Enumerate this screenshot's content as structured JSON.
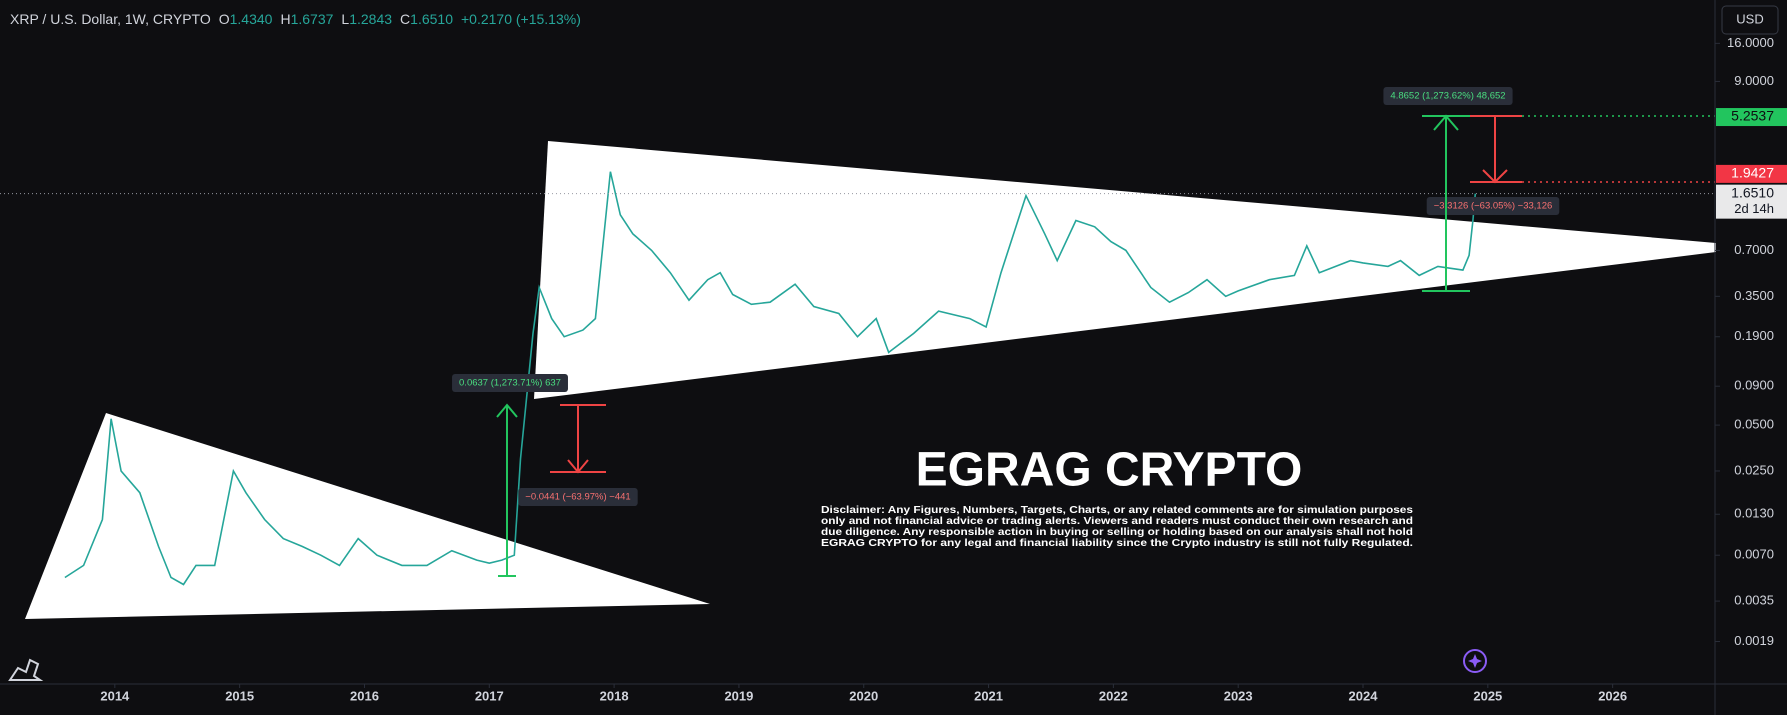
{
  "header": {
    "symbol": "XRP / U.S. Dollar, 1W, CRYPTO",
    "ohlc": [
      {
        "key": "O",
        "value": "1.4340"
      },
      {
        "key": "H",
        "value": "1.6737"
      },
      {
        "key": "L",
        "value": "1.2843"
      },
      {
        "key": "C",
        "value": "1.6510"
      }
    ],
    "change": "+0.2170 (+15.13%)"
  },
  "currency": "USD",
  "countdown": "2d 14h",
  "watermark": {
    "title": "EGRAG CRYPTO",
    "disclaimer": [
      "Disclaimer: Any Figures, Numbers, Targets, Charts, or any related comments are for simulation purposes",
      "only and not financial advice or trading alerts. Viewers and readers must conduct their own research and",
      "due diligence. Any responsible action in buying or selling or holding based on our analysis shall not hold",
      "EGRAG CRYPTO for any legal and financial liability since the Crypto industry is still not fully Regulated."
    ]
  },
  "chart_data": {
    "type": "line",
    "log_scale": true,
    "x": [
      2013.6,
      2013.75,
      2013.9,
      2013.97,
      2014.05,
      2014.2,
      2014.35,
      2014.45,
      2014.55,
      2014.65,
      2014.8,
      2014.95,
      2015.05,
      2015.2,
      2015.35,
      2015.5,
      2015.65,
      2015.8,
      2015.95,
      2016.1,
      2016.3,
      2016.5,
      2016.7,
      2016.9,
      2017.0,
      2017.1,
      2017.2,
      2017.25,
      2017.35,
      2017.4,
      2017.5,
      2017.6,
      2017.75,
      2017.85,
      2017.97,
      2018.05,
      2018.15,
      2018.3,
      2018.45,
      2018.6,
      2018.75,
      2018.85,
      2018.95,
      2019.1,
      2019.25,
      2019.45,
      2019.6,
      2019.8,
      2019.95,
      2020.1,
      2020.2,
      2020.4,
      2020.6,
      2020.85,
      2020.98,
      2021.1,
      2021.3,
      2021.45,
      2021.55,
      2021.7,
      2021.85,
      2021.98,
      2022.1,
      2022.3,
      2022.45,
      2022.6,
      2022.75,
      2022.9,
      2023.0,
      2023.25,
      2023.45,
      2023.55,
      2023.65,
      2023.9,
      2024.0,
      2024.2,
      2024.3,
      2024.45,
      2024.6,
      2024.8,
      2024.85,
      2024.88,
      2024.9
    ],
    "series": [
      {
        "color": "#26a69a",
        "values": [
          0.005,
          0.006,
          0.012,
          0.055,
          0.025,
          0.018,
          0.008,
          0.005,
          0.0045,
          0.006,
          0.006,
          0.025,
          0.018,
          0.012,
          0.009,
          0.008,
          0.007,
          0.006,
          0.009,
          0.007,
          0.006,
          0.006,
          0.0075,
          0.0065,
          0.0062,
          0.0065,
          0.007,
          0.03,
          0.2,
          0.4,
          0.25,
          0.19,
          0.21,
          0.25,
          2.3,
          1.2,
          0.9,
          0.7,
          0.5,
          0.33,
          0.45,
          0.5,
          0.36,
          0.31,
          0.32,
          0.42,
          0.3,
          0.27,
          0.19,
          0.25,
          0.15,
          0.2,
          0.28,
          0.25,
          0.22,
          0.5,
          1.6,
          0.9,
          0.6,
          1.1,
          1.0,
          0.8,
          0.7,
          0.4,
          0.32,
          0.37,
          0.45,
          0.35,
          0.38,
          0.45,
          0.48,
          0.75,
          0.5,
          0.6,
          0.58,
          0.55,
          0.6,
          0.48,
          0.55,
          0.52,
          0.65,
          1.1,
          1.651
        ]
      }
    ],
    "xlim": [
      2013.08,
      2026.82
    ],
    "ylim": [
      0.001,
      30.8
    ],
    "xticks": [
      2014,
      2015,
      2016,
      2017,
      2018,
      2019,
      2020,
      2021,
      2022,
      2023,
      2024,
      2025,
      2026
    ],
    "yticks": [
      {
        "value": 16,
        "label": "16.0000"
      },
      {
        "value": 9,
        "label": "9.0000"
      },
      {
        "value": 0.7,
        "label": "0.7000"
      },
      {
        "value": 0.35,
        "label": "0.3500"
      },
      {
        "value": 0.19,
        "label": "0.1900"
      },
      {
        "value": 0.09,
        "label": "0.0900"
      },
      {
        "value": 0.05,
        "label": "0.0500"
      },
      {
        "value": 0.025,
        "label": "0.0250"
      },
      {
        "value": 0.013,
        "label": "0.0130"
      },
      {
        "value": 0.007,
        "label": "0.0070"
      },
      {
        "value": 0.0035,
        "label": "0.0035"
      },
      {
        "value": 0.0019,
        "label": "0.0019"
      }
    ],
    "price_labels": [
      {
        "value": 5.2537,
        "color": "#22c55e"
      },
      {
        "value": 1.9427,
        "color": "#f23645"
      },
      {
        "value": 1.651,
        "label": "1.6510",
        "color": "#e9e9ea"
      }
    ],
    "annotations": [
      {
        "text": "4.8652 (1,273.62%) 48,652",
        "color": "#4ade80"
      },
      {
        "text": "0.0637 (1,273.71%) 637",
        "color": "#4ade80"
      },
      {
        "text": "−0.0441 (−63.97%) −441",
        "color": "#f87171"
      },
      {
        "text": "−3.3126 (−63.05%) −33,126",
        "color": "#f87171"
      }
    ]
  }
}
